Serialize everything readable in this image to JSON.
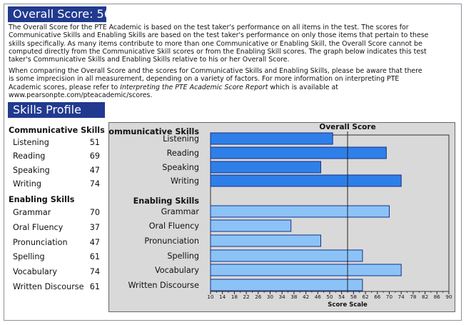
{
  "overall": {
    "title": "Overall Score: 56",
    "paragraph1": "The Overall Score for the PTE Academic is based on the test taker's performance on all items in the test.  The scores for Communicative Skills and Enabling Skills are based on the test taker's performance on only those items that pertain to these skills specifically.  As many items contribute to more than one Communicative or Enabling Skill, the Overall Score cannot be computed directly from the Communicative Skill scores or from the Enabling Skill scores.  The graph below indicates this test taker's Communicative Skills and Enabling Skills relative to his or her Overall Score.",
    "paragraph2_pre": "When comparing the Overall Score and the scores for Communicative Skills and Enabling Skills, please be aware that there is some imprecision in all measurement, depending on a variety of factors.  For more information on interpreting PTE Academic scores, please refer to ",
    "paragraph2_italic": "Interpreting the PTE Academic Score Report",
    "paragraph2_post": " which is available at www.pearsonpte.com/pteacademic/scores."
  },
  "skills_profile": {
    "title": "Skills Profile",
    "communicative_heading": "Communicative Skills",
    "enabling_heading": "Enabling Skills",
    "communicative": [
      {
        "label": "Listening",
        "value": "51"
      },
      {
        "label": "Reading",
        "value": "69"
      },
      {
        "label": "Speaking",
        "value": "47"
      },
      {
        "label": "Writing",
        "value": "74"
      }
    ],
    "enabling": [
      {
        "label": "Grammar",
        "value": "70"
      },
      {
        "label": "Oral Fluency",
        "value": "37"
      },
      {
        "label": "Pronunciation",
        "value": "47"
      },
      {
        "label": "Spelling",
        "value": "61"
      },
      {
        "label": "Vocabulary",
        "value": "74"
      },
      {
        "label": "Written Discourse",
        "value": "61"
      }
    ]
  },
  "chart_data": {
    "type": "bar",
    "orientation": "horizontal",
    "xlabel": "Score Scale",
    "xlim": [
      10,
      90
    ],
    "xticks": [
      10,
      14,
      18,
      22,
      26,
      30,
      34,
      38,
      42,
      46,
      50,
      54,
      58,
      62,
      66,
      70,
      74,
      78,
      82,
      86,
      90
    ],
    "reference_line": {
      "label": "Overall Score",
      "value": 56
    },
    "groups": [
      {
        "heading": "Communicative Skills",
        "color": "#2f7fe8",
        "categories": [
          "Listening",
          "Reading",
          "Speaking",
          "Writing"
        ],
        "values": [
          51,
          69,
          47,
          74
        ]
      },
      {
        "heading": "Enabling Skills",
        "color": "#8cc3f7",
        "categories": [
          "Grammar",
          "Oral Fluency",
          "Pronunciation",
          "Spelling",
          "Vocabulary",
          "Written Discourse"
        ],
        "values": [
          70,
          37,
          47,
          61,
          74,
          61
        ]
      }
    ]
  },
  "colors": {
    "header_bg": "#213a8f",
    "panel_bg": "#d9d9d9",
    "bar_border": "#14308a"
  }
}
